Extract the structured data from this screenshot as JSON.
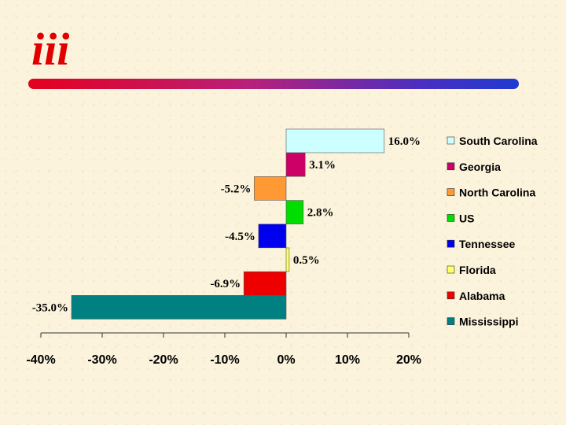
{
  "logo": {
    "text": "iii"
  },
  "chart_data": {
    "type": "bar",
    "orientation": "horizontal",
    "categories": [
      "South Carolina",
      "Georgia",
      "North Carolina",
      "US",
      "Tennessee",
      "Florida",
      "Alabama",
      "Mississippi"
    ],
    "values": [
      16.0,
      3.1,
      -5.2,
      2.8,
      -4.5,
      0.5,
      -6.9,
      -35.0
    ],
    "value_labels": [
      "16.0%",
      "3.1%",
      "-5.2%",
      "2.8%",
      "-4.5%",
      "0.5%",
      "-6.9%",
      "-35.0%"
    ],
    "colors": [
      "#ccffff",
      "#cc0066",
      "#ff9933",
      "#00dd00",
      "#0000ee",
      "#ffff66",
      "#ee0000",
      "#008080"
    ],
    "xlim": [
      -40,
      20
    ],
    "xticks": [
      -40,
      -30,
      -20,
      -10,
      0,
      10,
      20
    ],
    "xtick_labels": [
      "-40%",
      "-30%",
      "-20%",
      "-10%",
      "0%",
      "10%",
      "20%"
    ],
    "legend": {
      "placement": "right",
      "entries": [
        "South Carolina",
        "Georgia",
        "North Carolina",
        "US",
        "Tennessee",
        "Florida",
        "Alabama",
        "Mississippi"
      ]
    },
    "grid": false
  }
}
